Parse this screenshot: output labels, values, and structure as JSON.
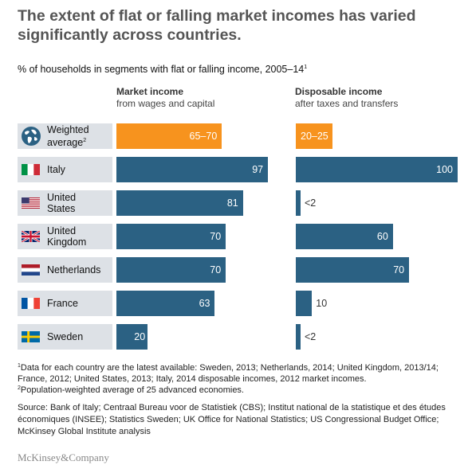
{
  "title": "The extent of flat or falling market incomes has varied significantly across countries.",
  "subtitle": "% of households in segments with flat or falling income, 2005–14",
  "subtitle_note": "1",
  "columns": {
    "market": {
      "title": "Market income",
      "sub": "from wages and capital"
    },
    "disposable": {
      "title": "Disposable income",
      "sub": "after taxes and transfers"
    }
  },
  "colors": {
    "highlight": "#f7931e",
    "bar": "#2b6183",
    "label_bg": "#dde1e6"
  },
  "chart_data": {
    "type": "bar",
    "orientation": "horizontal",
    "categories": [
      "Weighted average",
      "Italy",
      "United States",
      "United Kingdom",
      "Netherlands",
      "France",
      "Sweden"
    ],
    "series": [
      {
        "name": "Market income",
        "values": [
          67.5,
          97,
          81,
          70,
          70,
          63,
          20
        ],
        "labels": [
          "65–70",
          "97",
          "81",
          "70",
          "70",
          "63",
          "20"
        ]
      },
      {
        "name": "Disposable income",
        "values": [
          22.5,
          100,
          2,
          60,
          70,
          10,
          2
        ],
        "labels": [
          "20–25",
          "100",
          "<2",
          "60",
          "70",
          "10",
          "<2"
        ]
      }
    ],
    "xlim": [
      0,
      100
    ]
  },
  "rows": [
    {
      "line1": "Weighted",
      "line2": "average",
      "sup": "2",
      "icon": "globe-icon"
    },
    {
      "line1": "Italy",
      "line2": "",
      "sup": "",
      "icon": "italy-flag-icon"
    },
    {
      "line1": "United",
      "line2": "States",
      "sup": "",
      "icon": "usa-flag-icon"
    },
    {
      "line1": "United",
      "line2": "Kingdom",
      "sup": "",
      "icon": "uk-flag-icon"
    },
    {
      "line1": "Netherlands",
      "line2": "",
      "sup": "",
      "icon": "netherlands-flag-icon"
    },
    {
      "line1": "France",
      "line2": "",
      "sup": "",
      "icon": "france-flag-icon"
    },
    {
      "line1": "Sweden",
      "line2": "",
      "sup": "",
      "icon": "sweden-flag-icon"
    }
  ],
  "footnotes": {
    "n1_mark": "1",
    "n1": "Data for each country are the latest available: Sweden, 2013; Netherlands, 2014; United Kingdom, 2013/14; France, 2012; United States, 2013; Italy, 2014 disposable incomes, 2012 market incomes.",
    "n2_mark": "2",
    "n2": "Population-weighted average of 25 advanced economies."
  },
  "source": "Source: Bank of Italy; Centraal Bureau voor de Statistiek (CBS); Institut national de la statistique et des études économiques (INSEE); Statistics Sweden; UK Office for National Statistics; US Congressional Budget Office; McKinsey Global Institute analysis",
  "logo": "McKinsey&Company"
}
